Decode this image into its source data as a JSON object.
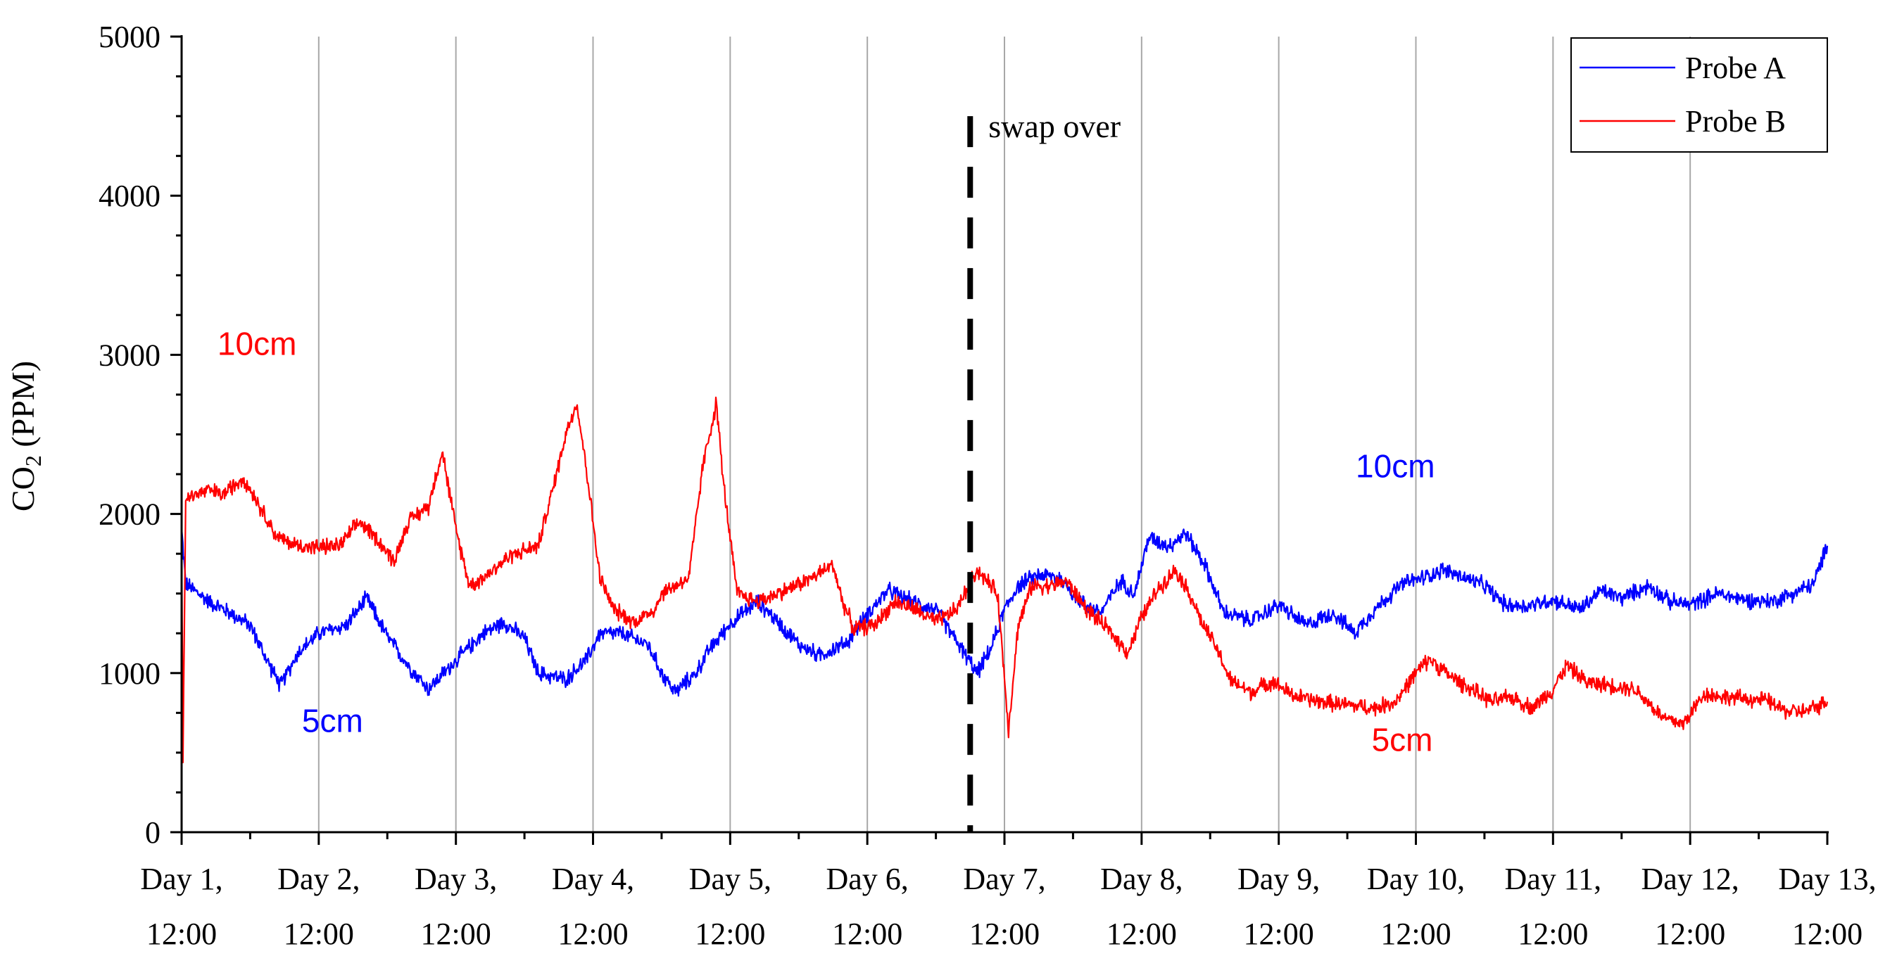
{
  "chart_data": {
    "type": "line",
    "title": "",
    "xlabel": "",
    "ylabel": "CO",
    "ylabel_subscript": "2",
    "ylabel_unit": " (PPM)",
    "ylim": [
      0,
      5000
    ],
    "xlim": [
      0,
      12
    ],
    "yticks": [
      0,
      1000,
      2000,
      3000,
      4000,
      5000
    ],
    "ytick_labels": [
      "0",
      "1000",
      "2000",
      "3000",
      "4000",
      "5000"
    ],
    "xticks": [
      {
        "x": 0,
        "line1": "Day 1,",
        "line2": "12:00"
      },
      {
        "x": 1,
        "line1": "Day 2,",
        "line2": "12:00"
      },
      {
        "x": 2,
        "line1": "Day 3,",
        "line2": "12:00"
      },
      {
        "x": 3,
        "line1": "Day 4,",
        "line2": "12:00"
      },
      {
        "x": 4,
        "line1": "Day 5,",
        "line2": "12:00"
      },
      {
        "x": 5,
        "line1": "Day 6,",
        "line2": "12:00"
      },
      {
        "x": 6,
        "line1": "Day 7,",
        "line2": "12:00"
      },
      {
        "x": 7,
        "line1": "Day 8,",
        "line2": "12:00"
      },
      {
        "x": 8,
        "line1": "Day 9,",
        "line2": "12:00"
      },
      {
        "x": 9,
        "line1": "Day 10,",
        "line2": "12:00"
      },
      {
        "x": 10,
        "line1": "Day 11,",
        "line2": "12:00"
      },
      {
        "x": 11,
        "line1": "Day 12,",
        "line2": "12:00"
      },
      {
        "x": 12,
        "line1": "Day 13,",
        "line2": "12:00"
      }
    ],
    "grid": "vertical",
    "legend_position": "top-right",
    "series": [
      {
        "name": "Probe A",
        "color": "#0000ff",
        "points": [
          [
            0,
            1900
          ],
          [
            0.03,
            1560
          ],
          [
            0.2,
            1450
          ],
          [
            0.35,
            1380
          ],
          [
            0.5,
            1300
          ],
          [
            0.6,
            1120
          ],
          [
            0.72,
            920
          ],
          [
            0.85,
            1130
          ],
          [
            1.0,
            1250
          ],
          [
            1.2,
            1300
          ],
          [
            1.35,
            1470
          ],
          [
            1.5,
            1230
          ],
          [
            1.65,
            1050
          ],
          [
            1.8,
            900
          ],
          [
            2.0,
            1080
          ],
          [
            2.2,
            1250
          ],
          [
            2.35,
            1320
          ],
          [
            2.5,
            1220
          ],
          [
            2.6,
            1000
          ],
          [
            2.8,
            960
          ],
          [
            2.95,
            1080
          ],
          [
            3.05,
            1250
          ],
          [
            3.2,
            1250
          ],
          [
            3.4,
            1180
          ],
          [
            3.5,
            1000
          ],
          [
            3.6,
            880
          ],
          [
            3.75,
            1000
          ],
          [
            3.85,
            1150
          ],
          [
            4.0,
            1310
          ],
          [
            4.2,
            1450
          ],
          [
            4.35,
            1320
          ],
          [
            4.5,
            1180
          ],
          [
            4.65,
            1110
          ],
          [
            4.85,
            1190
          ],
          [
            5.0,
            1370
          ],
          [
            5.15,
            1520
          ],
          [
            5.35,
            1440
          ],
          [
            5.5,
            1400
          ],
          [
            5.65,
            1200
          ],
          [
            5.8,
            1000
          ],
          [
            5.9,
            1150
          ],
          [
            6.0,
            1400
          ],
          [
            6.1,
            1550
          ],
          [
            6.25,
            1620
          ],
          [
            6.4,
            1600
          ],
          [
            6.55,
            1450
          ],
          [
            6.7,
            1380
          ],
          [
            6.85,
            1580
          ],
          [
            6.95,
            1500
          ],
          [
            7.05,
            1850
          ],
          [
            7.2,
            1800
          ],
          [
            7.32,
            1880
          ],
          [
            7.45,
            1700
          ],
          [
            7.6,
            1380
          ],
          [
            7.8,
            1330
          ],
          [
            8.0,
            1430
          ],
          [
            8.2,
            1300
          ],
          [
            8.4,
            1380
          ],
          [
            8.55,
            1250
          ],
          [
            8.7,
            1400
          ],
          [
            8.9,
            1560
          ],
          [
            9.05,
            1600
          ],
          [
            9.2,
            1650
          ],
          [
            9.35,
            1600
          ],
          [
            9.5,
            1550
          ],
          [
            9.65,
            1430
          ],
          [
            9.8,
            1420
          ],
          [
            10.0,
            1460
          ],
          [
            10.2,
            1400
          ],
          [
            10.35,
            1520
          ],
          [
            10.5,
            1470
          ],
          [
            10.7,
            1550
          ],
          [
            10.85,
            1450
          ],
          [
            11.0,
            1430
          ],
          [
            11.2,
            1500
          ],
          [
            11.4,
            1460
          ],
          [
            11.6,
            1450
          ],
          [
            11.8,
            1520
          ],
          [
            11.9,
            1560
          ],
          [
            12.0,
            1800
          ]
        ]
      },
      {
        "name": "Probe B",
        "color": "#ff0000",
        "points": [
          [
            0,
            1900
          ],
          [
            0.01,
            480
          ],
          [
            0.03,
            2100
          ],
          [
            0.2,
            2150
          ],
          [
            0.3,
            2120
          ],
          [
            0.45,
            2230
          ],
          [
            0.55,
            2080
          ],
          [
            0.7,
            1850
          ],
          [
            0.85,
            1800
          ],
          [
            1.0,
            1790
          ],
          [
            1.15,
            1800
          ],
          [
            1.3,
            1950
          ],
          [
            1.42,
            1850
          ],
          [
            1.55,
            1700
          ],
          [
            1.65,
            1950
          ],
          [
            1.8,
            2050
          ],
          [
            1.9,
            2400
          ],
          [
            2.0,
            1900
          ],
          [
            2.1,
            1550
          ],
          [
            2.2,
            1600
          ],
          [
            2.4,
            1740
          ],
          [
            2.6,
            1800
          ],
          [
            2.72,
            2200
          ],
          [
            2.8,
            2500
          ],
          [
            2.88,
            2700
          ],
          [
            2.95,
            2300
          ],
          [
            3.05,
            1600
          ],
          [
            3.15,
            1400
          ],
          [
            3.3,
            1320
          ],
          [
            3.45,
            1400
          ],
          [
            3.5,
            1500
          ],
          [
            3.6,
            1550
          ],
          [
            3.7,
            1600
          ],
          [
            3.8,
            2300
          ],
          [
            3.9,
            2700
          ],
          [
            3.95,
            2200
          ],
          [
            4.05,
            1500
          ],
          [
            4.2,
            1450
          ],
          [
            4.4,
            1520
          ],
          [
            4.6,
            1600
          ],
          [
            4.75,
            1680
          ],
          [
            4.82,
            1450
          ],
          [
            4.9,
            1280
          ],
          [
            5.05,
            1300
          ],
          [
            5.2,
            1450
          ],
          [
            5.35,
            1400
          ],
          [
            5.5,
            1320
          ],
          [
            5.65,
            1400
          ],
          [
            5.8,
            1650
          ],
          [
            5.95,
            1500
          ],
          [
            6.03,
            650
          ],
          [
            6.1,
            1300
          ],
          [
            6.2,
            1550
          ],
          [
            6.35,
            1550
          ],
          [
            6.45,
            1580
          ],
          [
            6.6,
            1400
          ],
          [
            6.75,
            1280
          ],
          [
            6.9,
            1130
          ],
          [
            7.0,
            1350
          ],
          [
            7.12,
            1530
          ],
          [
            7.25,
            1650
          ],
          [
            7.35,
            1500
          ],
          [
            7.45,
            1300
          ],
          [
            7.55,
            1150
          ],
          [
            7.65,
            950
          ],
          [
            7.8,
            880
          ],
          [
            7.95,
            950
          ],
          [
            8.1,
            860
          ],
          [
            8.3,
            820
          ],
          [
            8.5,
            800
          ],
          [
            8.7,
            780
          ],
          [
            8.85,
            820
          ],
          [
            9.0,
            1000
          ],
          [
            9.1,
            1090
          ],
          [
            9.25,
            980
          ],
          [
            9.4,
            900
          ],
          [
            9.55,
            820
          ],
          [
            9.7,
            850
          ],
          [
            9.85,
            780
          ],
          [
            10.0,
            900
          ],
          [
            10.1,
            1050
          ],
          [
            10.25,
            940
          ],
          [
            10.45,
            920
          ],
          [
            10.6,
            900
          ],
          [
            10.8,
            720
          ],
          [
            10.95,
            680
          ],
          [
            11.1,
            870
          ],
          [
            11.25,
            850
          ],
          [
            11.4,
            840
          ],
          [
            11.55,
            830
          ],
          [
            11.7,
            760
          ],
          [
            11.85,
            760
          ],
          [
            12.0,
            820
          ]
        ]
      }
    ],
    "legend": [
      {
        "label": "Probe A",
        "color": "#0000ff"
      },
      {
        "label": "Probe B",
        "color": "#ff0000"
      }
    ],
    "swap_marker": {
      "x": 5.75,
      "y_top": 4500,
      "label": "swap over"
    },
    "annotations": [
      {
        "text": "10cm",
        "color": "#ff0000",
        "x": 0.55,
        "y": 3000
      },
      {
        "text": "5cm",
        "color": "#0000ff",
        "x": 1.1,
        "y": 630
      },
      {
        "text": "10cm",
        "color": "#0000ff",
        "x": 8.85,
        "y": 2230
      },
      {
        "text": "5cm",
        "color": "#ff0000",
        "x": 8.9,
        "y": 510
      }
    ]
  }
}
